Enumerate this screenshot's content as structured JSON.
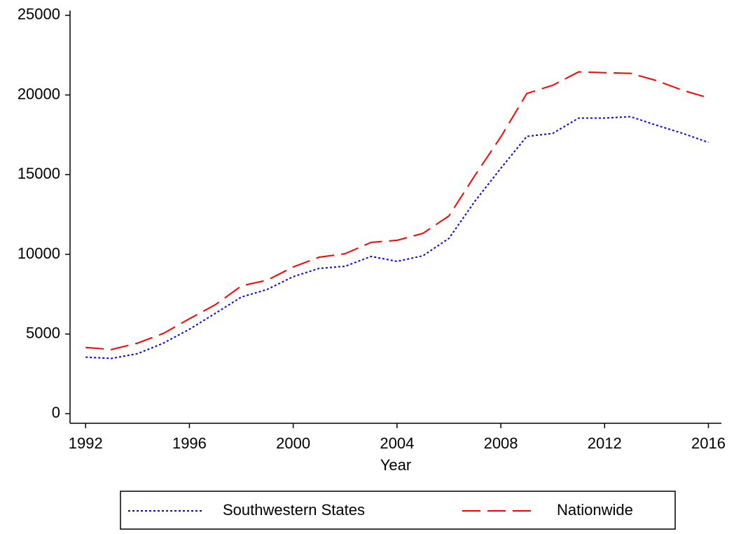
{
  "chart_data": {
    "type": "line",
    "x_label": "Year",
    "x": [
      1992,
      1993,
      1994,
      1995,
      1996,
      1997,
      1998,
      1999,
      2000,
      2001,
      2002,
      2003,
      2004,
      2005,
      2006,
      2007,
      2008,
      2009,
      2010,
      2011,
      2012,
      2013,
      2014,
      2015,
      2016
    ],
    "series": [
      {
        "name": "Southwestern States",
        "color": "#0000ff",
        "line_style": "dotted",
        "values": [
          3550,
          3470,
          3770,
          4430,
          5300,
          6300,
          7320,
          7800,
          8600,
          9120,
          9250,
          9870,
          9560,
          9910,
          11000,
          13330,
          15400,
          17400,
          17590,
          18550,
          18550,
          18640,
          18100,
          17600,
          17020
        ]
      },
      {
        "name": "Nationwide",
        "color": "#ff0000",
        "line_style": "dashed",
        "values": [
          4160,
          4030,
          4430,
          5040,
          5960,
          6840,
          8020,
          8380,
          9210,
          9820,
          10040,
          10750,
          10880,
          11320,
          12410,
          14950,
          17370,
          20090,
          20610,
          21450,
          21400,
          21360,
          20900,
          20300,
          19820
        ]
      }
    ],
    "xlim": [
      1991.4,
      2016.5
    ],
    "xticks": [
      1992,
      1996,
      2000,
      2004,
      2008,
      2012,
      2016
    ],
    "ylim": [
      -600,
      25300
    ],
    "yticks": [
      0,
      5000,
      10000,
      15000,
      20000,
      25000
    ],
    "grid": false,
    "legend": "bottom"
  }
}
